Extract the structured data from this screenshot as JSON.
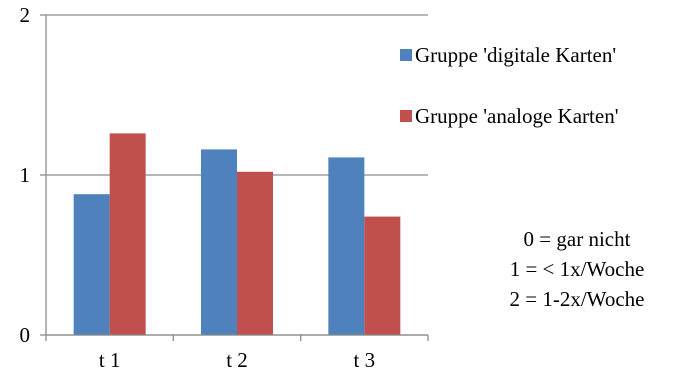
{
  "chart_data": {
    "type": "bar",
    "categories": [
      "t 1",
      "t 2",
      "t 3"
    ],
    "series": [
      {
        "name": "Gruppe 'digitale Karten'",
        "values": [
          0.88,
          1.16,
          1.11
        ],
        "color": "#4F81BD"
      },
      {
        "name": "Gruppe 'analoge Karten'",
        "values": [
          1.26,
          1.02,
          0.74
        ],
        "color": "#C0504D"
      }
    ],
    "ylim": [
      0,
      2
    ],
    "yticks": [
      "0",
      "1",
      "2"
    ],
    "grid": true,
    "legend_position": "right",
    "scale_note": [
      "0 = gar nicht",
      "1 = < 1x/Woche",
      "2 = 1-2x/Woche"
    ]
  }
}
